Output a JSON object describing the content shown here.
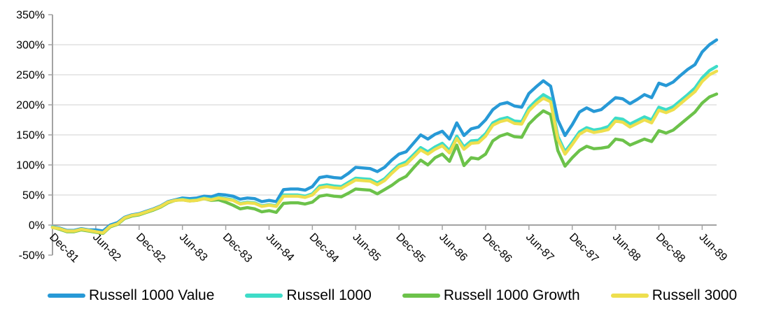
{
  "chart_data": {
    "type": "line",
    "title": "",
    "xlabel": "",
    "ylabel": "",
    "ylim": [
      -50,
      350
    ],
    "y_tick_step": 50,
    "grid": "horizontal",
    "legend_position": "bottom",
    "x_unit": "month",
    "tick_every_months": 6,
    "y_ticks": [
      {
        "value": 350,
        "label": "350%"
      },
      {
        "value": 300,
        "label": "300%"
      },
      {
        "value": 250,
        "label": "250%"
      },
      {
        "value": 200,
        "label": "200%"
      },
      {
        "value": 150,
        "label": "150%"
      },
      {
        "value": 100,
        "label": "100%"
      },
      {
        "value": 50,
        "label": "50%"
      },
      {
        "value": 0,
        "label": "0%"
      },
      {
        "value": -50,
        "label": "-50%"
      }
    ],
    "x_ticks": [
      {
        "index": 0,
        "label": "Dec-81"
      },
      {
        "index": 6,
        "label": "Jun-82"
      },
      {
        "index": 12,
        "label": "Dec-82"
      },
      {
        "index": 18,
        "label": "Jun-83"
      },
      {
        "index": 24,
        "label": "Dec-83"
      },
      {
        "index": 30,
        "label": "Jun-84"
      },
      {
        "index": 36,
        "label": "Dec-84"
      },
      {
        "index": 42,
        "label": "Jun-85"
      },
      {
        "index": 48,
        "label": "Dec-85"
      },
      {
        "index": 54,
        "label": "Jun-86"
      },
      {
        "index": 60,
        "label": "Dec-86"
      },
      {
        "index": 66,
        "label": "Jun-87"
      },
      {
        "index": 72,
        "label": "Dec-87"
      },
      {
        "index": 78,
        "label": "Jun-88"
      },
      {
        "index": 84,
        "label": "Dec-88"
      },
      {
        "index": 90,
        "label": "Jun-89"
      }
    ],
    "series": [
      {
        "name": "Russell 1000 Value",
        "color": "#2799d6",
        "values": [
          -3,
          -5,
          -9,
          -9,
          -6,
          -8,
          -8,
          -10,
          0,
          4,
          13,
          17,
          19,
          23,
          27,
          32,
          39,
          42,
          45,
          44,
          45,
          48,
          47,
          51,
          50,
          48,
          43,
          45,
          44,
          39,
          41,
          39,
          59,
          60,
          60,
          58,
          64,
          79,
          81,
          79,
          78,
          86,
          96,
          95,
          94,
          89,
          96,
          108,
          118,
          122,
          136,
          150,
          143,
          151,
          156,
          143,
          170,
          149,
          160,
          163,
          175,
          192,
          201,
          204,
          198,
          196,
          219,
          230,
          240,
          231,
          175,
          149,
          167,
          188,
          195,
          189,
          192,
          202,
          212,
          210,
          202,
          209,
          217,
          212,
          236,
          232,
          238,
          249,
          259,
          267,
          288,
          300,
          308
        ]
      },
      {
        "name": "Russell 1000",
        "color": "#3edcc8",
        "values": [
          -3,
          -6,
          -10,
          -10,
          -7,
          -9,
          -11,
          -13,
          -2,
          2,
          12,
          16,
          18,
          22,
          26,
          31,
          38,
          41,
          43,
          41,
          42,
          45,
          43,
          46,
          44,
          42,
          36,
          38,
          37,
          32,
          34,
          32,
          50,
          50,
          50,
          48,
          52,
          65,
          67,
          65,
          64,
          71,
          78,
          77,
          76,
          70,
          77,
          89,
          100,
          105,
          117,
          129,
          122,
          130,
          136,
          124,
          148,
          130,
          140,
          141,
          152,
          170,
          176,
          179,
          173,
          172,
          195,
          207,
          217,
          210,
          148,
          122,
          138,
          155,
          162,
          158,
          160,
          164,
          178,
          176,
          168,
          174,
          180,
          175,
          196,
          192,
          197,
          207,
          217,
          228,
          245,
          257,
          264
        ]
      },
      {
        "name": "Russell 1000 Growth",
        "color": "#6cc24a",
        "values": [
          -4,
          -7,
          -11,
          -11,
          -8,
          -10,
          -12,
          -14,
          -3,
          1,
          11,
          15,
          17,
          21,
          25,
          30,
          37,
          41,
          42,
          40,
          41,
          44,
          41,
          42,
          38,
          33,
          27,
          29,
          27,
          22,
          24,
          21,
          36,
          37,
          37,
          35,
          38,
          48,
          50,
          48,
          47,
          53,
          60,
          59,
          58,
          52,
          59,
          66,
          75,
          81,
          95,
          108,
          100,
          112,
          118,
          106,
          133,
          99,
          112,
          110,
          118,
          140,
          148,
          152,
          147,
          146,
          168,
          180,
          190,
          184,
          124,
          98,
          112,
          124,
          131,
          127,
          128,
          130,
          143,
          141,
          133,
          138,
          143,
          139,
          157,
          153,
          158,
          168,
          178,
          188,
          203,
          213,
          218
        ]
      },
      {
        "name": "Russell 3000",
        "color": "#eedf4e",
        "values": [
          -4,
          -6,
          -10,
          -10,
          -7,
          -9,
          -11,
          -13,
          -2,
          2,
          12,
          16,
          18,
          22,
          26,
          31,
          38,
          41,
          42,
          40,
          41,
          44,
          42,
          45,
          43,
          41,
          35,
          37,
          36,
          31,
          33,
          31,
          48,
          48,
          48,
          46,
          50,
          62,
          64,
          62,
          61,
          68,
          75,
          74,
          73,
          67,
          74,
          86,
          97,
          101,
          113,
          125,
          118,
          126,
          132,
          120,
          144,
          126,
          136,
          137,
          148,
          166,
          172,
          175,
          169,
          168,
          190,
          202,
          211,
          205,
          143,
          118,
          134,
          151,
          158,
          154,
          156,
          159,
          173,
          171,
          163,
          169,
          175,
          170,
          191,
          187,
          192,
          202,
          212,
          222,
          239,
          250,
          256
        ]
      }
    ],
    "colors": {
      "axis": "#a3a3a3",
      "gridline": "#d9d9d9",
      "text": "#000000"
    }
  }
}
